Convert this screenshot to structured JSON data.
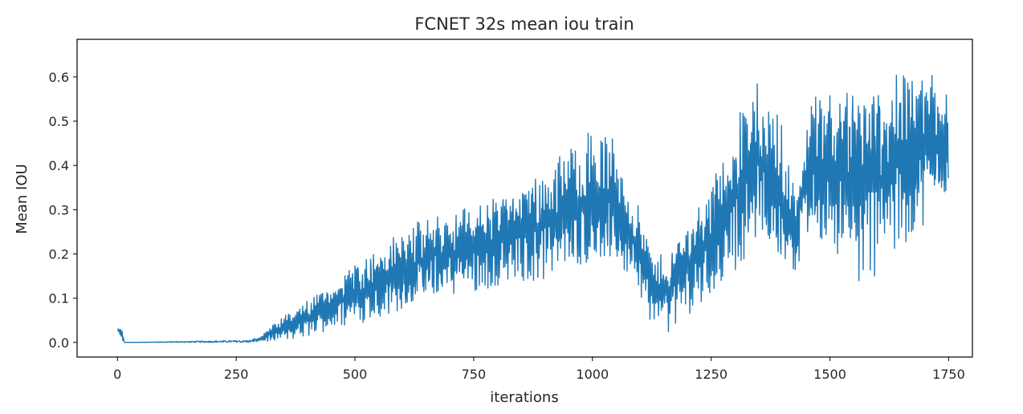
{
  "chart_data": {
    "type": "line",
    "title": "FCNET 32s mean iou train",
    "xlabel": "iterations",
    "ylabel": "Mean IOU",
    "xlim": [
      -85,
      1800
    ],
    "ylim": [
      -0.033,
      0.685
    ],
    "xticks": [
      0,
      250,
      500,
      750,
      1000,
      1250,
      1500,
      1750
    ],
    "xtick_labels": [
      "0",
      "250",
      "500",
      "750",
      "1000",
      "1250",
      "1500",
      "1750"
    ],
    "yticks": [
      0.0,
      0.1,
      0.2,
      0.3,
      0.4,
      0.5,
      0.6
    ],
    "ytick_labels": [
      "0.0",
      "0.1",
      "0.2",
      "0.3",
      "0.4",
      "0.5",
      "0.6"
    ],
    "grid": false,
    "legend": "none",
    "series": [
      {
        "color": "#1f77b4",
        "x_range": [
          0,
          1750
        ],
        "n_points": 1751,
        "envelope": [
          {
            "x": 0,
            "low": 0.025,
            "high": 0.035
          },
          {
            "x": 10,
            "low": 0.0,
            "high": 0.03
          },
          {
            "x": 15,
            "low": 0.0,
            "high": 0.0
          },
          {
            "x": 280,
            "low": 0.0,
            "high": 0.005
          },
          {
            "x": 300,
            "low": 0.0,
            "high": 0.015
          },
          {
            "x": 350,
            "low": 0.0,
            "high": 0.06
          },
          {
            "x": 400,
            "low": 0.01,
            "high": 0.1
          },
          {
            "x": 450,
            "low": 0.03,
            "high": 0.14
          },
          {
            "x": 500,
            "low": 0.04,
            "high": 0.2
          },
          {
            "x": 550,
            "low": 0.05,
            "high": 0.22
          },
          {
            "x": 600,
            "low": 0.06,
            "high": 0.26
          },
          {
            "x": 650,
            "low": 0.08,
            "high": 0.28
          },
          {
            "x": 700,
            "low": 0.09,
            "high": 0.3
          },
          {
            "x": 750,
            "low": 0.11,
            "high": 0.32
          },
          {
            "x": 800,
            "low": 0.12,
            "high": 0.35
          },
          {
            "x": 850,
            "low": 0.13,
            "high": 0.38
          },
          {
            "x": 900,
            "low": 0.14,
            "high": 0.41
          },
          {
            "x": 950,
            "low": 0.15,
            "high": 0.45
          },
          {
            "x": 1000,
            "low": 0.15,
            "high": 0.49
          },
          {
            "x": 1050,
            "low": 0.14,
            "high": 0.46
          },
          {
            "x": 1100,
            "low": 0.1,
            "high": 0.3
          },
          {
            "x": 1130,
            "low": 0.02,
            "high": 0.2
          },
          {
            "x": 1160,
            "low": 0.02,
            "high": 0.22
          },
          {
            "x": 1200,
            "low": 0.06,
            "high": 0.3
          },
          {
            "x": 1250,
            "low": 0.1,
            "high": 0.38
          },
          {
            "x": 1300,
            "low": 0.15,
            "high": 0.52
          },
          {
            "x": 1350,
            "low": 0.2,
            "high": 0.6
          },
          {
            "x": 1400,
            "low": 0.15,
            "high": 0.5
          },
          {
            "x": 1425,
            "low": 0.1,
            "high": 0.35
          },
          {
            "x": 1450,
            "low": 0.2,
            "high": 0.55
          },
          {
            "x": 1500,
            "low": 0.22,
            "high": 0.6
          },
          {
            "x": 1550,
            "low": 0.12,
            "high": 0.62
          },
          {
            "x": 1600,
            "low": 0.15,
            "high": 0.64
          },
          {
            "x": 1650,
            "low": 0.2,
            "high": 0.64
          },
          {
            "x": 1700,
            "low": 0.25,
            "high": 0.63
          },
          {
            "x": 1750,
            "low": 0.3,
            "high": 0.63
          }
        ]
      }
    ]
  }
}
